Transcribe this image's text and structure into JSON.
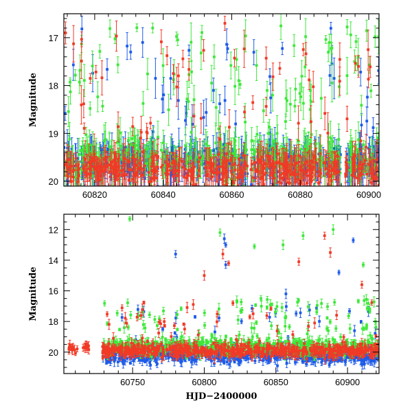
{
  "chart_data": [
    {
      "type": "scatter",
      "xlabel": "",
      "ylabel": "Magnitude",
      "xlim": [
        60811,
        60903
      ],
      "ylim": [
        20.1,
        16.5
      ],
      "y_inverted": true,
      "xticks": [
        60820,
        60840,
        60860,
        60880,
        60900
      ],
      "xtick_labels": [
        "60820",
        "60840",
        "60860",
        "60880",
        "60900"
      ],
      "yticks": [
        17,
        18,
        19,
        20
      ],
      "ytick_labels": [
        "17",
        "18",
        "19",
        "20"
      ],
      "grid": false,
      "series": [
        {
          "color": "#1d5be8",
          "baseline": 19.6,
          "scatter": 0.3,
          "flare_fraction": 0.08,
          "seed": 11
        },
        {
          "color": "#3ee83a",
          "baseline": 19.55,
          "scatter": 0.35,
          "flare_fraction": 0.25,
          "seed": 23
        },
        {
          "color": "#f03a26",
          "baseline": 19.75,
          "scatter": 0.25,
          "flare_fraction": 0.1,
          "seed": 37
        }
      ],
      "notable_points": [
        {
          "x": 60858,
          "y": 16.7,
          "color": "#f03a26"
        },
        {
          "x": 60811.5,
          "y": 16.9,
          "color": "#f03a26"
        },
        {
          "x": 60834,
          "y": 17.1,
          "color": "#1d5be8"
        },
        {
          "x": 60830.5,
          "y": 17.3,
          "color": "#1d5be8"
        },
        {
          "x": 60897,
          "y": 17.6,
          "color": "#f03a26"
        }
      ]
    },
    {
      "type": "scatter",
      "xlabel": "HJD−2400000",
      "ylabel": "Magnitude",
      "xlim": [
        60702,
        60922
      ],
      "ylim": [
        21.4,
        11.0
      ],
      "y_inverted": true,
      "xticks": [
        60750,
        60800,
        60850,
        60900
      ],
      "xtick_labels": [
        "60750",
        "60800",
        "60850",
        "60900"
      ],
      "yticks": [
        12,
        14,
        16,
        18,
        20
      ],
      "ytick_labels": [
        "12",
        "14",
        "16",
        "18",
        "20"
      ],
      "grid": false,
      "series": [
        {
          "color": "#1d5be8",
          "baseline": 20.2,
          "scatter": 0.45,
          "flare_fraction": 0.06,
          "seed": 41
        },
        {
          "color": "#3ee83a",
          "baseline": 19.7,
          "scatter": 0.45,
          "flare_fraction": 0.18,
          "seed": 53
        },
        {
          "color": "#f03a26",
          "baseline": 19.9,
          "scatter": 0.35,
          "flare_fraction": 0.06,
          "seed": 67
        }
      ],
      "notable_points": [
        {
          "x": 60748,
          "y": 11.3,
          "color": "#3ee83a"
        },
        {
          "x": 60811,
          "y": 12.2,
          "color": "#3ee83a"
        },
        {
          "x": 60814,
          "y": 12.6,
          "color": "#1d5be8"
        },
        {
          "x": 60815,
          "y": 13.0,
          "color": "#1d5be8"
        },
        {
          "x": 60884,
          "y": 12.4,
          "color": "#f03a26"
        },
        {
          "x": 60890,
          "y": 12.0,
          "color": "#3ee83a"
        },
        {
          "x": 60904,
          "y": 12.7,
          "color": "#1d5be8"
        },
        {
          "x": 60869,
          "y": 12.4,
          "color": "#3ee83a"
        },
        {
          "x": 60855,
          "y": 13.0,
          "color": "#3ee83a"
        },
        {
          "x": 60835,
          "y": 13.1,
          "color": "#3ee83a"
        },
        {
          "x": 60780,
          "y": 13.6,
          "color": "#1d5be8"
        },
        {
          "x": 60813,
          "y": 13.6,
          "color": "#f03a26"
        },
        {
          "x": 60817,
          "y": 14.2,
          "color": "#f03a26"
        },
        {
          "x": 60815,
          "y": 14.3,
          "color": "#1d5be8"
        },
        {
          "x": 60888,
          "y": 13.5,
          "color": "#f03a26"
        },
        {
          "x": 60911,
          "y": 14.3,
          "color": "#3ee83a"
        },
        {
          "x": 60866,
          "y": 14.1,
          "color": "#f03a26"
        },
        {
          "x": 60800,
          "y": 15.0,
          "color": "#f03a26"
        },
        {
          "x": 60894,
          "y": 14.8,
          "color": "#1d5be8"
        },
        {
          "x": 60910,
          "y": 15.6,
          "color": "#f03a26"
        },
        {
          "x": 60857,
          "y": 16.2,
          "color": "#1d5be8"
        },
        {
          "x": 60820,
          "y": 16.8,
          "color": "#f03a26"
        }
      ],
      "segments": [
        {
          "color": "#f03a26",
          "x": [
            60705,
            60712
          ],
          "baseline": 19.8,
          "scatter": 0.25,
          "n": 12
        },
        {
          "color": "#f03a26",
          "x": [
            60715,
            60722
          ],
          "baseline": 19.7,
          "scatter": 0.2,
          "n": 10
        }
      ]
    }
  ]
}
